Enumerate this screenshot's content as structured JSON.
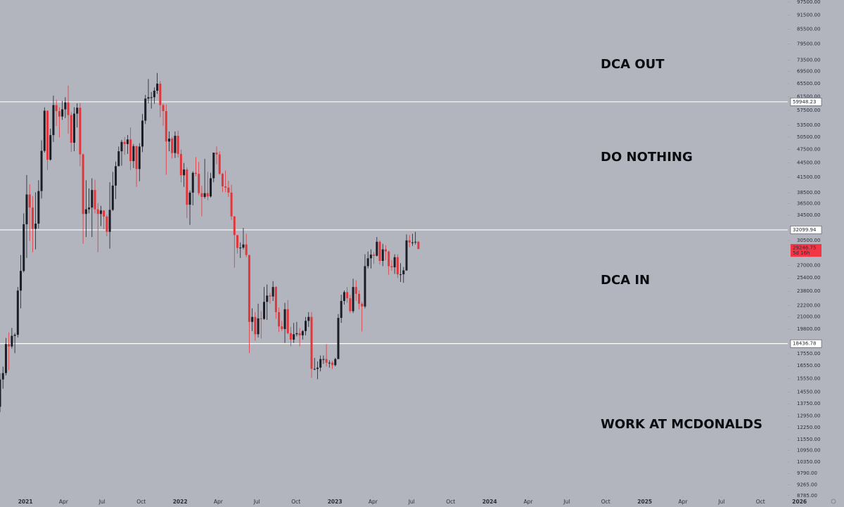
{
  "chart_data": {
    "type": "candlestick",
    "x": [
      "2020-11-02",
      "2020-11-09",
      "2020-11-16",
      "2020-11-23",
      "2020-11-30",
      "2020-12-07",
      "2020-12-14",
      "2020-12-21",
      "2020-12-28",
      "2021-01-04",
      "2021-01-11",
      "2021-01-18",
      "2021-01-25",
      "2021-02-01",
      "2021-02-08",
      "2021-02-15",
      "2021-02-22",
      "2021-03-01",
      "2021-03-08",
      "2021-03-15",
      "2021-03-22",
      "2021-03-29",
      "2021-04-05",
      "2021-04-12",
      "2021-04-19",
      "2021-04-26",
      "2021-05-03",
      "2021-05-10",
      "2021-05-17",
      "2021-05-24",
      "2021-05-31",
      "2021-06-07",
      "2021-06-14",
      "2021-06-21",
      "2021-06-28",
      "2021-07-05",
      "2021-07-12",
      "2021-07-19",
      "2021-07-26",
      "2021-08-02",
      "2021-08-09",
      "2021-08-16",
      "2021-08-23",
      "2021-08-30",
      "2021-09-06",
      "2021-09-13",
      "2021-09-20",
      "2021-09-27",
      "2021-10-04",
      "2021-10-11",
      "2021-10-18",
      "2021-10-25",
      "2021-11-01",
      "2021-11-08",
      "2021-11-15",
      "2021-11-22",
      "2021-11-29",
      "2021-12-06",
      "2021-12-13",
      "2021-12-20",
      "2021-12-27",
      "2022-01-03",
      "2022-01-10",
      "2022-01-17",
      "2022-01-24",
      "2022-01-31",
      "2022-02-07",
      "2022-02-14",
      "2022-02-21",
      "2022-02-28",
      "2022-03-07",
      "2022-03-14",
      "2022-03-21",
      "2022-03-28",
      "2022-04-04",
      "2022-04-11",
      "2022-04-18",
      "2022-04-25",
      "2022-05-02",
      "2022-05-09",
      "2022-05-16",
      "2022-05-23",
      "2022-05-30",
      "2022-06-06",
      "2022-06-13",
      "2022-06-20",
      "2022-06-27",
      "2022-07-04",
      "2022-07-11",
      "2022-07-18",
      "2022-07-25",
      "2022-08-01",
      "2022-08-08",
      "2022-08-15",
      "2022-08-22",
      "2022-08-29",
      "2022-09-05",
      "2022-09-12",
      "2022-09-19",
      "2022-09-26",
      "2022-10-03",
      "2022-10-10",
      "2022-10-17",
      "2022-10-24",
      "2022-10-31",
      "2022-11-07",
      "2022-11-14",
      "2022-11-21",
      "2022-11-28",
      "2022-12-05",
      "2022-12-12",
      "2022-12-19",
      "2022-12-26",
      "2023-01-02",
      "2023-01-09",
      "2023-01-16",
      "2023-01-23",
      "2023-01-30",
      "2023-02-06",
      "2023-02-13",
      "2023-02-20",
      "2023-02-27",
      "2023-03-06",
      "2023-03-13",
      "2023-03-20",
      "2023-03-27",
      "2023-04-03",
      "2023-04-10",
      "2023-04-17",
      "2023-04-24",
      "2023-05-01",
      "2023-05-08",
      "2023-05-15",
      "2023-05-22",
      "2023-05-29",
      "2023-06-05",
      "2023-06-12",
      "2023-06-19",
      "2023-06-26",
      "2023-07-03",
      "2023-07-10",
      "2023-07-17"
    ],
    "open": [
      13550,
      15480,
      15970,
      18400,
      18180,
      19150,
      19250,
      23880,
      26280,
      33000,
      38150,
      35800,
      32260,
      33100,
      38800,
      47200,
      57400,
      45200,
      50970,
      59000,
      57300,
      55800,
      57800,
      59800,
      56200,
      49100,
      56600,
      58250,
      46400,
      34700,
      35500,
      35800,
      39000,
      35500,
      34700,
      35300,
      34250,
      31800,
      35400,
      39850,
      43800,
      47100,
      49300,
      48800,
      49900,
      44900,
      48300,
      43200,
      48200,
      54700,
      60900,
      61300,
      61300,
      63300,
      65500,
      59000,
      57300,
      49400,
      50100,
      46700,
      50800,
      46500,
      41900,
      43100,
      36300,
      38500,
      42400,
      42200,
      38400,
      37700,
      38400,
      37800,
      41300,
      46800,
      46400,
      42200,
      39700,
      39450,
      38500,
      34300,
      31300,
      29400,
      29450,
      29900,
      28400,
      20500,
      21000,
      19300,
      20850,
      20800,
      22600,
      23300,
      23200,
      24300,
      21500,
      20050,
      19800,
      21800,
      19400,
      18800,
      19300,
      19400,
      19200,
      19600,
      20600,
      21000,
      16300,
      16300,
      16400,
      17100,
      17100,
      16800,
      16800,
      16600,
      17100,
      20900,
      22700,
      23700,
      23000,
      21600,
      24300,
      23500,
      22400,
      22100,
      26900,
      27950,
      28450,
      28300,
      30300,
      27600,
      29200,
      28900,
      26900,
      26750,
      28100,
      25850,
      25850,
      26350,
      30500,
      30200,
      30200,
      30300
    ],
    "high": [
      15960,
      16480,
      18950,
      19480,
      19900,
      19420,
      24300,
      28400,
      34800,
      41950,
      40100,
      37850,
      38550,
      40900,
      49700,
      58350,
      57500,
      52600,
      61800,
      60600,
      58400,
      60200,
      61300,
      64900,
      57000,
      58400,
      59500,
      59600,
      46600,
      40900,
      39300,
      41300,
      41000,
      36600,
      36100,
      35300,
      34600,
      40500,
      42600,
      44800,
      48200,
      49800,
      50500,
      51000,
      52900,
      48800,
      48400,
      49000,
      56500,
      62000,
      67000,
      62900,
      64300,
      69000,
      66300,
      59400,
      59200,
      51900,
      50500,
      51900,
      52100,
      47500,
      44500,
      43500,
      38900,
      42700,
      45800,
      44700,
      39800,
      45400,
      42600,
      42400,
      46700,
      48200,
      47100,
      42400,
      42900,
      40800,
      40000,
      34300,
      31300,
      30200,
      32400,
      31500,
      28400,
      21900,
      21500,
      22400,
      21600,
      24300,
      24600,
      23600,
      25000,
      24400,
      22000,
      20600,
      22500,
      22800,
      20000,
      20400,
      20500,
      19900,
      19700,
      21000,
      21500,
      21500,
      17200,
      16900,
      17400,
      17400,
      18400,
      17000,
      16950,
      17200,
      21300,
      23400,
      23900,
      24300,
      23400,
      25300,
      25100,
      23900,
      22600,
      28500,
      28900,
      29200,
      28800,
      31000,
      30500,
      30000,
      29800,
      29000,
      27700,
      28500,
      28500,
      27300,
      26800,
      31400,
      31300,
      31500,
      31800,
      30400
    ],
    "low": [
      13200,
      14800,
      15780,
      16200,
      18000,
      17600,
      19000,
      21900,
      26100,
      28000,
      30400,
      28800,
      29200,
      32300,
      37400,
      46800,
      43000,
      45000,
      49300,
      53300,
      50400,
      54900,
      55400,
      51300,
      47000,
      47100,
      52900,
      43800,
      30000,
      31000,
      34800,
      31000,
      34800,
      28800,
      32700,
      32200,
      31100,
      29300,
      35200,
      37300,
      43800,
      43900,
      46300,
      46500,
      43000,
      43400,
      39600,
      40700,
      46900,
      53800,
      59500,
      58000,
      59400,
      62300,
      55600,
      53300,
      42000,
      47100,
      45500,
      45600,
      45700,
      40500,
      39600,
      34000,
      32900,
      36200,
      41700,
      38000,
      34300,
      37400,
      37100,
      37600,
      40500,
      44200,
      42000,
      38600,
      38600,
      37700,
      33700,
      26700,
      28600,
      28000,
      29200,
      28100,
      17600,
      19600,
      18700,
      19000,
      18900,
      20700,
      20700,
      22400,
      22700,
      20800,
      19500,
      19600,
      18500,
      19300,
      18200,
      18500,
      19100,
      18200,
      18800,
      19200,
      20000,
      15600,
      16200,
      15500,
      16100,
      16700,
      16500,
      16400,
      16300,
      16500,
      17100,
      20400,
      22300,
      22500,
      21400,
      21400,
      22700,
      21800,
      19550,
      21900,
      26600,
      26600,
      27200,
      28200,
      27100,
      26900,
      27700,
      25800,
      26300,
      25900,
      25400,
      24900,
      24800,
      26300,
      29500,
      29700,
      29900,
      29200
    ],
    "close": [
      15480,
      15970,
      18400,
      18180,
      19150,
      19250,
      23880,
      26280,
      33000,
      38150,
      35800,
      32260,
      33100,
      38800,
      47200,
      57400,
      45200,
      50970,
      59000,
      57300,
      55800,
      57800,
      59800,
      56200,
      49100,
      56600,
      58250,
      46400,
      34700,
      35500,
      35800,
      39000,
      35500,
      34700,
      35300,
      34250,
      31800,
      35400,
      39850,
      43800,
      47100,
      49300,
      48800,
      49900,
      44900,
      48300,
      43200,
      48200,
      54700,
      60900,
      61300,
      61300,
      63300,
      65500,
      59000,
      57300,
      49400,
      50100,
      46700,
      50800,
      46500,
      41900,
      43100,
      36300,
      38500,
      42400,
      42200,
      38400,
      37700,
      38400,
      37800,
      41300,
      46800,
      46400,
      42200,
      39700,
      39450,
      38500,
      34300,
      31300,
      29400,
      29450,
      29900,
      28400,
      20500,
      21000,
      19300,
      20850,
      20800,
      22600,
      23300,
      23200,
      24300,
      21500,
      20050,
      19800,
      21800,
      19400,
      18800,
      19300,
      19400,
      19200,
      19600,
      20600,
      21000,
      16300,
      16300,
      16400,
      17100,
      17100,
      16800,
      16800,
      16600,
      17100,
      20900,
      22700,
      23700,
      23000,
      21600,
      24300,
      23500,
      22400,
      22100,
      26900,
      27950,
      28450,
      28300,
      30300,
      27600,
      29200,
      28900,
      26900,
      26750,
      28100,
      25850,
      25850,
      26350,
      30500,
      30200,
      30200,
      30300,
      29246.75
    ],
    "up_color": "#1b1e27",
    "down_color": "#e3363b",
    "xlim": [
      "2020-11-02",
      "2026-04-16"
    ],
    "xticks": [
      {
        "value": "2021-01-01",
        "label": "2021"
      },
      {
        "value": "2021-04-01",
        "label": "Apr"
      },
      {
        "value": "2021-07-01",
        "label": "Jul"
      },
      {
        "value": "2021-10-01",
        "label": "Oct"
      },
      {
        "value": "2022-01-01",
        "label": "2022"
      },
      {
        "value": "2022-04-01",
        "label": "Apr"
      },
      {
        "value": "2022-07-01",
        "label": "Jul"
      },
      {
        "value": "2022-10-01",
        "label": "Oct"
      },
      {
        "value": "2023-01-01",
        "label": "2023"
      },
      {
        "value": "2023-04-01",
        "label": "Apr"
      },
      {
        "value": "2023-07-01",
        "label": "Jul"
      },
      {
        "value": "2023-10-01",
        "label": "Oct"
      },
      {
        "value": "2024-01-01",
        "label": "2024"
      },
      {
        "value": "2024-04-01",
        "label": "Apr"
      },
      {
        "value": "2024-07-01",
        "label": "Jul"
      },
      {
        "value": "2024-10-01",
        "label": "Oct"
      },
      {
        "value": "2025-01-01",
        "label": "2025"
      },
      {
        "value": "2025-04-01",
        "label": "Apr"
      },
      {
        "value": "2025-07-01",
        "label": "Jul"
      },
      {
        "value": "2025-10-01",
        "label": "Oct"
      },
      {
        "value": "2026-01-01",
        "label": "2026"
      }
    ],
    "ylim": [
      8750,
      98500
    ],
    "log_scale": true,
    "yticks": [
      {
        "value": 97500,
        "label": "97500.00"
      },
      {
        "value": 91500,
        "label": "91500.00"
      },
      {
        "value": 85500,
        "label": "85500.00"
      },
      {
        "value": 79500,
        "label": "79500.00"
      },
      {
        "value": 73500,
        "label": "73500.00"
      },
      {
        "value": 69500,
        "label": "69500.00"
      },
      {
        "value": 65500,
        "label": "65500.00"
      },
      {
        "value": 61500,
        "label": "61500.00"
      },
      {
        "value": 57500,
        "label": "57500.00"
      },
      {
        "value": 53500,
        "label": "53500.00"
      },
      {
        "value": 50500,
        "label": "50500.00"
      },
      {
        "value": 47500,
        "label": "47500.00"
      },
      {
        "value": 44500,
        "label": "44500.00"
      },
      {
        "value": 41500,
        "label": "41500.00"
      },
      {
        "value": 38500,
        "label": "38500.00"
      },
      {
        "value": 36500,
        "label": "36500.00"
      },
      {
        "value": 34500,
        "label": "34500.00"
      },
      {
        "value": 30500,
        "label": "30500.00"
      },
      {
        "value": 27000,
        "label": "27000.00"
      },
      {
        "value": 25400,
        "label": "25400.00"
      },
      {
        "value": 23800,
        "label": "23800.00"
      },
      {
        "value": 22200,
        "label": "22200.00"
      },
      {
        "value": 21000,
        "label": "21000.00"
      },
      {
        "value": 19800,
        "label": "19800.00"
      },
      {
        "value": 17550,
        "label": "17550.00"
      },
      {
        "value": 16550,
        "label": "16550.00"
      },
      {
        "value": 15550,
        "label": "15550.00"
      },
      {
        "value": 14550,
        "label": "14550.00"
      },
      {
        "value": 13750,
        "label": "13750.00"
      },
      {
        "value": 12950,
        "label": "12950.00"
      },
      {
        "value": 12250,
        "label": "12250.00"
      },
      {
        "value": 11550,
        "label": "11550.00"
      },
      {
        "value": 10950,
        "label": "10950.00"
      },
      {
        "value": 10350,
        "label": "10350.00"
      },
      {
        "value": 9790,
        "label": "9790.00"
      },
      {
        "value": 9265,
        "label": "9265.00"
      },
      {
        "value": 8785,
        "label": "8785.00"
      }
    ],
    "levels": [
      59948.23,
      32099.94,
      18436.78
    ],
    "countdown": "5d 16h",
    "annotations": [
      "DCA OUT",
      "DO NOTHING",
      "DCA IN",
      "WORK AT MCDONALDS"
    ]
  }
}
